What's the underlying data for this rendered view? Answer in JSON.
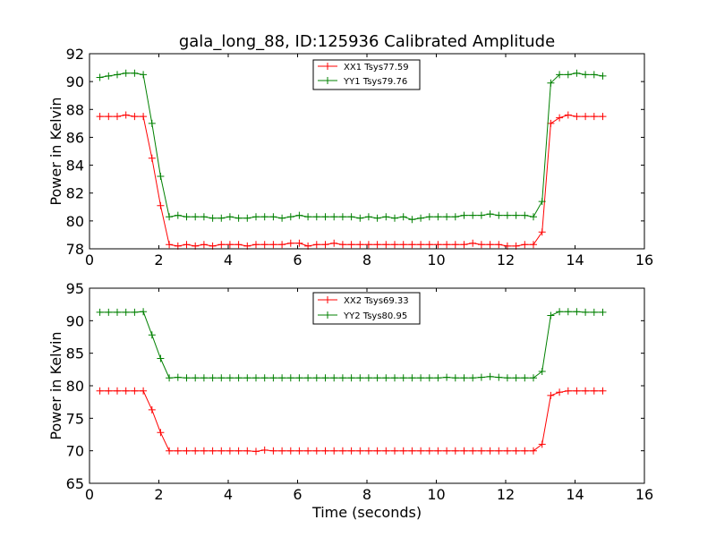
{
  "chart_data": [
    {
      "type": "line",
      "title": "gala_long_88, ID:125936 Calibrated Amplitude",
      "xlabel": "",
      "ylabel": "Power in Kelvin",
      "xlim": [
        0,
        16
      ],
      "ylim": [
        78,
        92
      ],
      "xticks": [
        0,
        2,
        4,
        6,
        8,
        10,
        12,
        14,
        16
      ],
      "yticks": [
        78,
        80,
        82,
        84,
        86,
        88,
        90,
        92
      ],
      "grid": false,
      "legend_position": "top-center",
      "marker": "plus",
      "x": [
        0.3,
        0.55,
        0.8,
        1.05,
        1.3,
        1.55,
        1.8,
        2.05,
        2.3,
        2.55,
        2.8,
        3.05,
        3.3,
        3.55,
        3.8,
        4.05,
        4.3,
        4.55,
        4.8,
        5.05,
        5.3,
        5.55,
        5.8,
        6.05,
        6.3,
        6.55,
        6.8,
        7.05,
        7.3,
        7.55,
        7.8,
        8.05,
        8.3,
        8.55,
        8.8,
        9.05,
        9.3,
        9.55,
        9.8,
        10.05,
        10.3,
        10.55,
        10.8,
        11.05,
        11.3,
        11.55,
        11.8,
        12.05,
        12.3,
        12.55,
        12.8,
        13.05,
        13.3,
        13.55,
        13.8,
        14.05,
        14.3,
        14.55,
        14.8
      ],
      "series": [
        {
          "name": "XX1 Tsys77.59",
          "color": "#ff0000",
          "values": [
            87.5,
            87.5,
            87.5,
            87.6,
            87.5,
            87.5,
            84.5,
            81.1,
            78.3,
            78.2,
            78.3,
            78.2,
            78.3,
            78.2,
            78.3,
            78.3,
            78.3,
            78.2,
            78.3,
            78.3,
            78.3,
            78.3,
            78.4,
            78.4,
            78.2,
            78.3,
            78.3,
            78.4,
            78.3,
            78.3,
            78.3,
            78.3,
            78.3,
            78.3,
            78.3,
            78.3,
            78.3,
            78.3,
            78.3,
            78.3,
            78.3,
            78.3,
            78.3,
            78.4,
            78.3,
            78.3,
            78.3,
            78.2,
            78.2,
            78.3,
            78.3,
            79.2,
            87.0,
            87.4,
            87.6,
            87.5,
            87.5,
            87.5,
            87.5
          ]
        },
        {
          "name": "YY1 Tsys79.76",
          "color": "#008000",
          "values": [
            90.3,
            90.4,
            90.5,
            90.6,
            90.6,
            90.5,
            87.0,
            83.2,
            80.3,
            80.4,
            80.3,
            80.3,
            80.3,
            80.2,
            80.2,
            80.3,
            80.2,
            80.2,
            80.3,
            80.3,
            80.3,
            80.2,
            80.3,
            80.4,
            80.3,
            80.3,
            80.3,
            80.3,
            80.3,
            80.3,
            80.2,
            80.3,
            80.2,
            80.3,
            80.2,
            80.3,
            80.1,
            80.2,
            80.3,
            80.3,
            80.3,
            80.3,
            80.4,
            80.4,
            80.4,
            80.5,
            80.4,
            80.4,
            80.4,
            80.4,
            80.3,
            81.4,
            89.9,
            90.5,
            90.5,
            90.6,
            90.5,
            90.5,
            90.4
          ]
        }
      ]
    },
    {
      "type": "line",
      "title": "",
      "xlabel": "Time (seconds)",
      "ylabel": "Power in Kelvin",
      "xlim": [
        0,
        16
      ],
      "ylim": [
        65,
        95
      ],
      "xticks": [
        0,
        2,
        4,
        6,
        8,
        10,
        12,
        14,
        16
      ],
      "yticks": [
        65,
        70,
        75,
        80,
        85,
        90,
        95
      ],
      "grid": false,
      "legend_position": "top-center",
      "marker": "plus",
      "x": [
        0.3,
        0.55,
        0.8,
        1.05,
        1.3,
        1.55,
        1.8,
        2.05,
        2.3,
        2.55,
        2.8,
        3.05,
        3.3,
        3.55,
        3.8,
        4.05,
        4.3,
        4.55,
        4.8,
        5.05,
        5.3,
        5.55,
        5.8,
        6.05,
        6.3,
        6.55,
        6.8,
        7.05,
        7.3,
        7.55,
        7.8,
        8.05,
        8.3,
        8.55,
        8.8,
        9.05,
        9.3,
        9.55,
        9.8,
        10.05,
        10.3,
        10.55,
        10.8,
        11.05,
        11.3,
        11.55,
        11.8,
        12.05,
        12.3,
        12.55,
        12.8,
        13.05,
        13.3,
        13.55,
        13.8,
        14.05,
        14.3,
        14.55,
        14.8
      ],
      "series": [
        {
          "name": "XX2 Tsys69.33",
          "color": "#ff0000",
          "values": [
            79.2,
            79.2,
            79.2,
            79.2,
            79.2,
            79.2,
            76.3,
            72.8,
            70.0,
            70.0,
            70.0,
            70.0,
            70.0,
            70.0,
            70.0,
            70.0,
            70.0,
            70.0,
            69.9,
            70.1,
            70.0,
            70.0,
            70.0,
            70.0,
            70.0,
            70.0,
            70.0,
            70.0,
            70.0,
            70.0,
            70.0,
            70.0,
            70.0,
            70.0,
            70.0,
            70.0,
            70.0,
            70.0,
            70.0,
            70.0,
            70.0,
            70.0,
            70.0,
            70.0,
            70.0,
            70.0,
            70.0,
            70.0,
            70.0,
            70.0,
            70.0,
            71.0,
            78.5,
            79.0,
            79.2,
            79.2,
            79.2,
            79.2,
            79.2
          ]
        },
        {
          "name": "YY2 Tsys80.95",
          "color": "#008000",
          "values": [
            91.3,
            91.3,
            91.3,
            91.3,
            91.3,
            91.4,
            87.8,
            84.2,
            81.2,
            81.3,
            81.2,
            81.2,
            81.2,
            81.2,
            81.2,
            81.2,
            81.2,
            81.2,
            81.2,
            81.2,
            81.2,
            81.2,
            81.2,
            81.2,
            81.2,
            81.2,
            81.2,
            81.2,
            81.2,
            81.2,
            81.2,
            81.2,
            81.2,
            81.2,
            81.2,
            81.2,
            81.2,
            81.2,
            81.2,
            81.2,
            81.3,
            81.2,
            81.2,
            81.2,
            81.3,
            81.4,
            81.3,
            81.2,
            81.2,
            81.2,
            81.2,
            82.2,
            90.8,
            91.4,
            91.4,
            91.4,
            91.3,
            91.3,
            91.3
          ]
        }
      ]
    }
  ]
}
